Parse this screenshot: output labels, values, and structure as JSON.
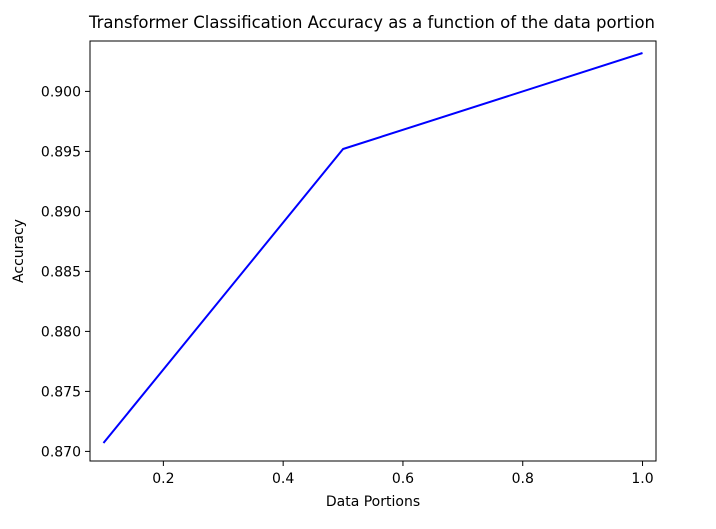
{
  "chart_data": {
    "type": "line",
    "title": "Transformer Classification Accuracy as a function of the data portion",
    "xlabel": "Data Portions",
    "ylabel": "Accuracy",
    "x": [
      0.1,
      0.5,
      1.0
    ],
    "series": [
      {
        "values": [
          0.8707,
          0.8952,
          0.9032
        ],
        "color": "#0000ff"
      }
    ],
    "xlim": [
      0.0775,
      1.0225
    ],
    "ylim": [
      0.8692,
      0.9042
    ],
    "xticks": [
      0.2,
      0.4,
      0.6,
      0.8,
      1.0
    ],
    "xtick_labels": [
      "0.2",
      "0.4",
      "0.6",
      "0.8",
      "1.0"
    ],
    "yticks": [
      0.87,
      0.875,
      0.88,
      0.885,
      0.89,
      0.895,
      0.9
    ],
    "ytick_labels": [
      "0.870",
      "0.875",
      "0.880",
      "0.885",
      "0.890",
      "0.895",
      "0.900"
    ],
    "grid": false,
    "legend": false
  }
}
